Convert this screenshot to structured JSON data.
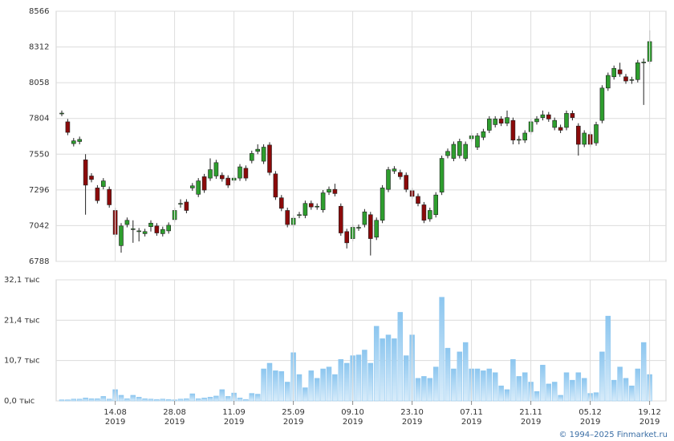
{
  "chart_data": [
    {
      "type": "candlestick",
      "categories": [
        "2019-08-01",
        "2019-08-02",
        "2019-08-05",
        "2019-08-06",
        "2019-08-07",
        "2019-08-08",
        "2019-08-09",
        "2019-08-12",
        "2019-08-13",
        "2019-08-14",
        "2019-08-15",
        "2019-08-16",
        "2019-08-19",
        "2019-08-20",
        "2019-08-21",
        "2019-08-22",
        "2019-08-23",
        "2019-08-26",
        "2019-08-27",
        "2019-08-28",
        "2019-08-29",
        "2019-08-30",
        "2019-09-02",
        "2019-09-03",
        "2019-09-04",
        "2019-09-05",
        "2019-09-06",
        "2019-09-09",
        "2019-09-10",
        "2019-09-11",
        "2019-09-12",
        "2019-09-13",
        "2019-09-16",
        "2019-09-17",
        "2019-09-18",
        "2019-09-19",
        "2019-09-20",
        "2019-09-23",
        "2019-09-24",
        "2019-09-25",
        "2019-09-26",
        "2019-09-27",
        "2019-09-30",
        "2019-10-01",
        "2019-10-02",
        "2019-10-03",
        "2019-10-04",
        "2019-10-07",
        "2019-10-08",
        "2019-10-09",
        "2019-10-10",
        "2019-10-11",
        "2019-10-14",
        "2019-10-15",
        "2019-10-16",
        "2019-10-17",
        "2019-10-18",
        "2019-10-21",
        "2019-10-22",
        "2019-10-23",
        "2019-10-24",
        "2019-10-25",
        "2019-10-28",
        "2019-10-29",
        "2019-10-30",
        "2019-10-31",
        "2019-11-01",
        "2019-11-05",
        "2019-11-06",
        "2019-11-07",
        "2019-11-08",
        "2019-11-11",
        "2019-11-12",
        "2019-11-13",
        "2019-11-14",
        "2019-11-15",
        "2019-11-18",
        "2019-11-19",
        "2019-11-20",
        "2019-11-21",
        "2019-11-22",
        "2019-11-25",
        "2019-11-26",
        "2019-11-27",
        "2019-11-28",
        "2019-11-29",
        "2019-12-02",
        "2019-12-03",
        "2019-12-04",
        "2019-12-05",
        "2019-12-06",
        "2019-12-09",
        "2019-12-10",
        "2019-12-11",
        "2019-12-12",
        "2019-12-13",
        "2019-12-16",
        "2019-12-17",
        "2019-12-18",
        "2019-12-19"
      ],
      "open": [
        7840,
        7780,
        7625,
        7640,
        7510,
        7395,
        7310,
        7320,
        7300,
        7150,
        6900,
        7050,
        7015,
        7000,
        6985,
        7035,
        7040,
        6985,
        7005,
        7085,
        7195,
        7210,
        7310,
        7265,
        7390,
        7380,
        7395,
        7400,
        7380,
        7365,
        7380,
        7450,
        7505,
        7570,
        7500,
        7615,
        7410,
        7240,
        7150,
        7050,
        7115,
        7115,
        7200,
        7175,
        7155,
        7280,
        7300,
        7180,
        7000,
        6950,
        7025,
        7050,
        7120,
        6960,
        7080,
        7300,
        7430,
        7420,
        7400,
        7290,
        7250,
        7190,
        7090,
        7120,
        7280,
        7540,
        7520,
        7540,
        7520,
        7660,
        7600,
        7670,
        7720,
        7760,
        7800,
        7770,
        7790,
        7650,
        7650,
        7710,
        7780,
        7810,
        7830,
        7740,
        7740,
        7740,
        7840,
        7750,
        7620,
        7690,
        7630,
        7790,
        8020,
        8100,
        8150,
        8100,
        8075,
        8080,
        8200,
        8210
      ],
      "high": [
        7860,
        7800,
        7665,
        7675,
        7550,
        7415,
        7330,
        7380,
        7320,
        7170,
        7060,
        7100,
        7080,
        7025,
        7020,
        7080,
        7060,
        7035,
        7065,
        7170,
        7230,
        7230,
        7345,
        7380,
        7410,
        7520,
        7510,
        7420,
        7400,
        7400,
        7480,
        7470,
        7575,
        7620,
        7620,
        7635,
        7430,
        7260,
        7170,
        7115,
        7140,
        7220,
        7220,
        7200,
        7295,
        7320,
        7340,
        7200,
        7020,
        7050,
        7050,
        7160,
        7140,
        7100,
        7330,
        7460,
        7465,
        7440,
        7420,
        7310,
        7270,
        7210,
        7170,
        7280,
        7540,
        7590,
        7640,
        7660,
        7640,
        7700,
        7700,
        7730,
        7820,
        7820,
        7820,
        7860,
        7810,
        7680,
        7720,
        7800,
        7820,
        7860,
        7850,
        7810,
        7760,
        7860,
        7860,
        7770,
        7720,
        7710,
        7780,
        8040,
        8130,
        8180,
        8200,
        8120,
        8100,
        8220,
        8230,
        8430
      ],
      "low": [
        7820,
        7685,
        7605,
        7620,
        7120,
        7350,
        7200,
        7300,
        7170,
        6960,
        6850,
        7030,
        6920,
        6930,
        6965,
        7000,
        6970,
        6965,
        6985,
        7065,
        7170,
        7130,
        7290,
        7245,
        7275,
        7360,
        7375,
        7355,
        7310,
        7345,
        7360,
        7360,
        7485,
        7550,
        7480,
        7400,
        7225,
        7145,
        7030,
        7030,
        7095,
        7095,
        7155,
        7155,
        7135,
        7260,
        7250,
        6970,
        6880,
        6930,
        7005,
        7030,
        6830,
        6940,
        7060,
        7280,
        7410,
        7370,
        7280,
        7230,
        7180,
        7060,
        7070,
        7100,
        7260,
        7520,
        7500,
        7520,
        7500,
        7640,
        7580,
        7650,
        7700,
        7740,
        7750,
        7750,
        7620,
        7620,
        7630,
        7690,
        7760,
        7790,
        7780,
        7720,
        7700,
        7720,
        7790,
        7540,
        7600,
        7600,
        7610,
        7770,
        8000,
        8080,
        8100,
        8050,
        8050,
        8060,
        7900,
        8190
      ],
      "close": [
        7842,
        7705,
        7645,
        7655,
        7330,
        7370,
        7220,
        7360,
        7190,
        6980,
        7040,
        7080,
        7020,
        7005,
        7000,
        7060,
        6990,
        7015,
        7045,
        7150,
        7200,
        7150,
        7325,
        7360,
        7295,
        7440,
        7490,
        7375,
        7330,
        7380,
        7460,
        7380,
        7555,
        7585,
        7600,
        7420,
        7245,
        7165,
        7050,
        7095,
        7120,
        7200,
        7175,
        7180,
        7275,
        7300,
        7270,
        6990,
        6920,
        7030,
        7030,
        7140,
        6950,
        7080,
        7310,
        7440,
        7445,
        7390,
        7300,
        7250,
        7200,
        7080,
        7150,
        7260,
        7520,
        7570,
        7620,
        7640,
        7620,
        7680,
        7680,
        7710,
        7800,
        7800,
        7770,
        7810,
        7650,
        7655,
        7700,
        7780,
        7800,
        7830,
        7800,
        7790,
        7720,
        7840,
        7810,
        7620,
        7700,
        7620,
        7760,
        8020,
        8110,
        8160,
        8120,
        8070,
        8080,
        8200,
        8205,
        8350
      ],
      "up_color": "#2e9e2e",
      "down_color": "#8b0a0a",
      "ylim": [
        6788,
        8566
      ],
      "yticks": [
        6788,
        7042,
        7296,
        7550,
        7804,
        8058,
        8312,
        8566
      ],
      "grid": true
    },
    {
      "type": "bar",
      "values": [
        0.3,
        0.3,
        0.5,
        0.5,
        0.8,
        0.6,
        0.6,
        1.2,
        0.5,
        3.0,
        1.5,
        0.6,
        1.5,
        1.0,
        0.6,
        0.5,
        0.4,
        0.5,
        0.4,
        0.3,
        0.5,
        0.6,
        1.9,
        0.6,
        0.8,
        1.0,
        1.3,
        3.0,
        1.2,
        2.1,
        0.8,
        0.4,
        2.0,
        1.8,
        8.5,
        10,
        8,
        7.8,
        5,
        12.8,
        7,
        3.5,
        8,
        6,
        8.5,
        9,
        7,
        11,
        10,
        12,
        12.2,
        13.5,
        10,
        19.8,
        16.5,
        17.5,
        16.5,
        23.5,
        12,
        17.5,
        6,
        6.5,
        6,
        9,
        27.5,
        14,
        8.5,
        13,
        15.5,
        8.5,
        8.5,
        8,
        8.5,
        7.5,
        4,
        3,
        11,
        6.5,
        7.5,
        5,
        2.5,
        9.5,
        4.5,
        5,
        1.5,
        7.5,
        5.5,
        7.5,
        6,
        2,
        2.2,
        13,
        22.5,
        5.5,
        9,
        6,
        4,
        8.5,
        15.5,
        7
      ],
      "color": "#8cc6ef",
      "ylim": [
        0,
        32.1
      ],
      "yticks": [
        {
          "value": 0,
          "label": "0,0 тыс"
        },
        {
          "value": 10.7,
          "label": "10,7 тыс"
        },
        {
          "value": 21.4,
          "label": "21,4 тыс"
        },
        {
          "value": 32.1,
          "label": "32,1 тыс"
        }
      ],
      "xticks": [
        {
          "value": "2019-08-14",
          "label": "14.08",
          "year": "2019"
        },
        {
          "value": "2019-08-28",
          "label": "28.08",
          "year": "2019"
        },
        {
          "value": "2019-09-11",
          "label": "11.09",
          "year": "2019"
        },
        {
          "value": "2019-09-25",
          "label": "25.09",
          "year": "2019"
        },
        {
          "value": "2019-10-09",
          "label": "09.10",
          "year": "2019"
        },
        {
          "value": "2019-10-23",
          "label": "23.10",
          "year": "2019"
        },
        {
          "value": "2019-11-07",
          "label": "07.11",
          "year": "2019"
        },
        {
          "value": "2019-11-21",
          "label": "21.11",
          "year": "2019"
        },
        {
          "value": "2019-12-05",
          "label": "05.12",
          "year": "2019"
        },
        {
          "value": "2019-12-19",
          "label": "19.12",
          "year": "2019"
        }
      ],
      "grid": true
    }
  ],
  "footer": "© 1994–2025 Finmarket.ru"
}
